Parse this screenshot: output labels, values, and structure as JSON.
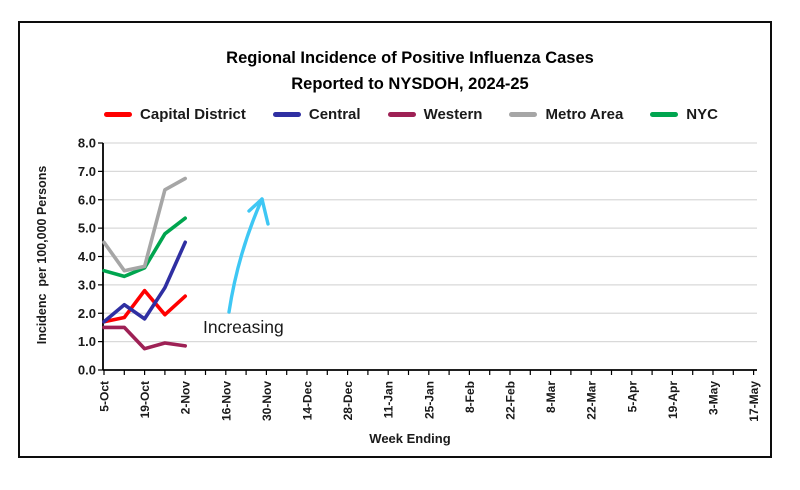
{
  "title": {
    "line1": "Regional Incidence of Positive Influenza Cases",
    "line2": "Reported to NYSDOH, 2024-25"
  },
  "chart_data": {
    "type": "line",
    "title": "Regional Incidence of Positive Influenza Cases Reported to NYSDOH, 2024-25",
    "xlabel": "Week Ending",
    "ylabel": "Incidenc  per 100,000 Persons",
    "ylim": [
      0.0,
      8.0
    ],
    "ytick_step": 1.0,
    "ytick_labels": [
      "0.0",
      "1.0",
      "2.0",
      "3.0",
      "4.0",
      "5.0",
      "6.0",
      "7.0",
      "8.0"
    ],
    "xtick_labels": [
      "5-Oct",
      "19-Oct",
      "2-Nov",
      "16-Nov",
      "30-Nov",
      "14-Dec",
      "28-Dec",
      "11-Jan",
      "25-Jan",
      "8-Feb",
      "22-Feb",
      "8-Mar",
      "22-Mar",
      "5-Apr",
      "19-Apr",
      "3-May",
      "17-May"
    ],
    "minor_xticks_weekly": true,
    "grid": "horizontal",
    "legend_position": "top",
    "x": [
      "5-Oct",
      "12-Oct",
      "19-Oct",
      "26-Oct",
      "2-Nov"
    ],
    "series": [
      {
        "name": "Capital District",
        "color": "#FF0000",
        "values": [
          1.7,
          1.85,
          2.8,
          1.95,
          2.6
        ]
      },
      {
        "name": "Central",
        "color": "#2F2FA2",
        "values": [
          1.7,
          2.3,
          1.8,
          2.9,
          4.5
        ]
      },
      {
        "name": "Western",
        "color": "#9E2155",
        "values": [
          1.5,
          1.5,
          0.75,
          0.95,
          0.85
        ]
      },
      {
        "name": "Metro Area",
        "color": "#A6A6A6",
        "values": [
          4.5,
          3.5,
          3.65,
          6.35,
          6.75
        ]
      },
      {
        "name": "NYC",
        "color": "#00A54F",
        "values": [
          3.5,
          3.3,
          3.6,
          4.8,
          5.35
        ]
      }
    ],
    "annotation": {
      "text": "Increasing",
      "arrow_direction": "up",
      "arrow_color": "#3EC7F4"
    }
  },
  "colors": {
    "grid": "#D9D9D9",
    "axis": "#000000",
    "text": "#1A1A1A",
    "arrow": "#3EC7F4",
    "frame_border": "#0D0D0D"
  }
}
